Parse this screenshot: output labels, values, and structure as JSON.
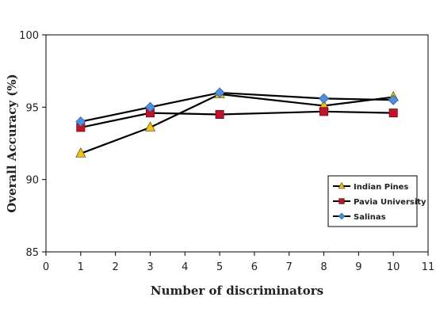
{
  "chart_data": {
    "type": "line",
    "title": "",
    "xlabel": "Number  of  discriminators",
    "ylabel": "Overall  Accuracy  (%)",
    "xlim": [
      0,
      11
    ],
    "ylim": [
      85,
      100
    ],
    "xticks": [
      0,
      1,
      2,
      3,
      4,
      5,
      6,
      7,
      8,
      9,
      10,
      11
    ],
    "yticks": [
      85,
      90,
      95,
      100
    ],
    "grid": false,
    "legend_position": "bottom-right",
    "series": [
      {
        "name": "Indian Pines",
        "marker": "triangle",
        "marker_color": "#f2c21b",
        "line_color": "#000000",
        "points": [
          [
            1,
            91.8
          ],
          [
            3,
            93.6
          ],
          [
            5,
            95.9
          ],
          [
            8,
            95.1
          ],
          [
            10,
            95.7
          ]
        ]
      },
      {
        "name": "Pavia University",
        "marker": "square",
        "marker_color": "#c0142a",
        "line_color": "#000000",
        "points": [
          [
            1,
            93.6
          ],
          [
            3,
            94.6
          ],
          [
            5,
            94.5
          ],
          [
            8,
            94.7
          ],
          [
            10,
            94.6
          ]
        ]
      },
      {
        "name": "Salinas",
        "marker": "diamond",
        "marker_color": "#4f8fdc",
        "line_color": "#000000",
        "points": [
          [
            1,
            94.0
          ],
          [
            3,
            95.0
          ],
          [
            5,
            96.0
          ],
          [
            8,
            95.6
          ],
          [
            10,
            95.5
          ]
        ]
      }
    ]
  }
}
